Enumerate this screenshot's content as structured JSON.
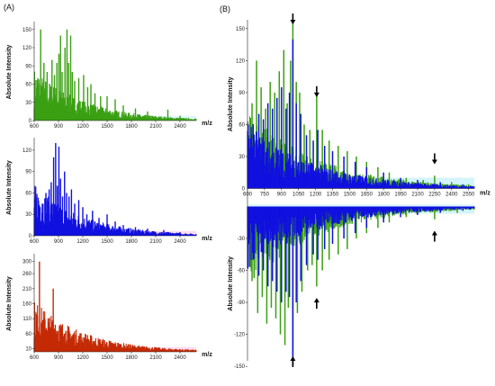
{
  "panels": {
    "a_label": "(A)",
    "b_label": "(B)"
  },
  "colors": {
    "green": "#3aa012",
    "blue": "#1010e0",
    "red": "#c42a05",
    "pink": "#ff9ad0",
    "cyan": "#9ee7f5"
  },
  "chart_data": [
    {
      "type": "bar",
      "title": "",
      "xlabel": "m/z",
      "ylabel": "Absolute Intensity",
      "xlim": [
        600,
        2600
      ],
      "ylim": [
        0,
        160
      ],
      "xticks": [
        600,
        900,
        1200,
        1500,
        1800,
        2100,
        2400
      ],
      "yticks": [
        0,
        30,
        60,
        90,
        120,
        150
      ],
      "series": [
        {
          "color": "#3aa012",
          "peaks": [
            [
              645,
              70
            ],
            [
              680,
              150
            ],
            [
              720,
              95
            ],
            [
              760,
              80
            ],
            [
              790,
              60
            ],
            [
              820,
              100
            ],
            [
              850,
              75
            ],
            [
              880,
              95
            ],
            [
              905,
              110
            ],
            [
              925,
              140
            ],
            [
              945,
              80
            ],
            [
              980,
              120
            ],
            [
              1005,
              150
            ],
            [
              1025,
              95
            ],
            [
              1050,
              140
            ],
            [
              1070,
              80
            ],
            [
              1100,
              65
            ],
            [
              1150,
              70
            ],
            [
              1210,
              75
            ],
            [
              1260,
              55
            ],
            [
              1300,
              60
            ],
            [
              1350,
              45
            ],
            [
              1420,
              40
            ],
            [
              1500,
              40
            ],
            [
              1600,
              35
            ],
            [
              1700,
              25
            ],
            [
              1850,
              20
            ],
            [
              2000,
              15
            ],
            [
              2250,
              18
            ],
            [
              2400,
              8
            ]
          ]
        }
      ]
    },
    {
      "type": "bar",
      "title": "",
      "xlabel": "m/z",
      "ylabel": "Absolute Intensity",
      "xlim": [
        600,
        2600
      ],
      "ylim": [
        0,
        135
      ],
      "xticks": [
        600,
        900,
        1200,
        1500,
        1800,
        2100,
        2400
      ],
      "yticks": [
        0,
        30,
        60,
        90,
        120
      ],
      "series": [
        {
          "color": "#1010e0",
          "peaks": [
            [
              660,
              40
            ],
            [
              700,
              45
            ],
            [
              745,
              60
            ],
            [
              785,
              65
            ],
            [
              810,
              75
            ],
            [
              840,
              110
            ],
            [
              865,
              130
            ],
            [
              885,
              70
            ],
            [
              905,
              125
            ],
            [
              925,
              80
            ],
            [
              950,
              55
            ],
            [
              975,
              90
            ],
            [
              1000,
              60
            ],
            [
              1030,
              55
            ],
            [
              1060,
              65
            ],
            [
              1100,
              45
            ],
            [
              1150,
              50
            ],
            [
              1200,
              40
            ],
            [
              1250,
              30
            ],
            [
              1320,
              35
            ],
            [
              1400,
              25
            ],
            [
              1500,
              30
            ],
            [
              1600,
              20
            ],
            [
              1700,
              15
            ],
            [
              1850,
              12
            ],
            [
              2000,
              10
            ],
            [
              2200,
              8
            ],
            [
              2400,
              5
            ]
          ]
        }
      ]
    },
    {
      "type": "bar",
      "title": "",
      "xlabel": "m/z",
      "ylabel": "Absolute Intensity",
      "xlim": [
        600,
        2600
      ],
      "ylim": [
        0,
        320
      ],
      "xticks": [
        600,
        900,
        1200,
        1500,
        1800,
        2100,
        2400
      ],
      "yticks": [
        10,
        60,
        110,
        160,
        210,
        260,
        300
      ],
      "series": [
        {
          "color": "#c42a05",
          "peaks": [
            [
              640,
              120
            ],
            [
              665,
              300
            ],
            [
              690,
              100
            ],
            [
              720,
              60
            ],
            [
              760,
              70
            ],
            [
              800,
              80
            ],
            [
              835,
              210
            ],
            [
              860,
              90
            ],
            [
              890,
              60
            ],
            [
              930,
              50
            ],
            [
              970,
              60
            ],
            [
              1010,
              40
            ],
            [
              1060,
              35
            ],
            [
              1120,
              40
            ],
            [
              1200,
              25
            ],
            [
              1300,
              20
            ],
            [
              1420,
              15
            ],
            [
              1550,
              15
            ],
            [
              1700,
              10
            ],
            [
              1900,
              8
            ],
            [
              2150,
              6
            ],
            [
              2400,
              5
            ]
          ]
        }
      ]
    },
    {
      "type": "bar",
      "title": "",
      "xlabel": "m/z",
      "ylabel": "Absolute Intensity",
      "xlim": [
        600,
        2600
      ],
      "ylim": [
        -160,
        160
      ],
      "xticks": [
        600,
        750,
        900,
        1050,
        1200,
        1350,
        1500,
        1650,
        1800,
        1950,
        2100,
        2250,
        2400,
        2550
      ],
      "yticks": [
        -150,
        -120,
        -90,
        -60,
        -30,
        0,
        30,
        60,
        90,
        120,
        150
      ],
      "arrows": [
        {
          "x": 1000,
          "direction": "down",
          "side": "top"
        },
        {
          "x": 1210,
          "direction": "down",
          "side": "top"
        },
        {
          "x": 2250,
          "direction": "down",
          "side": "top"
        },
        {
          "x": 1000,
          "direction": "up",
          "side": "bottom"
        },
        {
          "x": 1210,
          "direction": "up",
          "side": "bottom"
        },
        {
          "x": 2250,
          "direction": "up",
          "side": "bottom"
        }
      ],
      "series": [
        {
          "color": "#3aa012",
          "side": "top",
          "peaks": [
            [
              640,
              80
            ],
            [
              680,
              120
            ],
            [
              720,
              95
            ],
            [
              760,
              75
            ],
            [
              800,
              100
            ],
            [
              840,
              90
            ],
            [
              880,
              110
            ],
            [
              920,
              130
            ],
            [
              950,
              80
            ],
            [
              980,
              120
            ],
            [
              1000,
              158
            ],
            [
              1030,
              100
            ],
            [
              1060,
              90
            ],
            [
              1100,
              60
            ],
            [
              1150,
              55
            ],
            [
              1210,
              90
            ],
            [
              1260,
              55
            ],
            [
              1320,
              45
            ],
            [
              1400,
              40
            ],
            [
              1480,
              35
            ],
            [
              1560,
              30
            ],
            [
              1650,
              25
            ],
            [
              1750,
              20
            ],
            [
              1850,
              15
            ],
            [
              2000,
              10
            ],
            [
              2150,
              8
            ],
            [
              2250,
              12
            ],
            [
              2400,
              6
            ],
            [
              2550,
              4
            ]
          ]
        },
        {
          "color": "#1010e0",
          "side": "top",
          "peaks": [
            [
              650,
              60
            ],
            [
              700,
              70
            ],
            [
              740,
              65
            ],
            [
              780,
              80
            ],
            [
              820,
              75
            ],
            [
              860,
              85
            ],
            [
              900,
              95
            ],
            [
              940,
              75
            ],
            [
              970,
              90
            ],
            [
              1000,
              140
            ],
            [
              1030,
              80
            ],
            [
              1070,
              70
            ],
            [
              1120,
              50
            ],
            [
              1180,
              45
            ],
            [
              1220,
              55
            ],
            [
              1280,
              40
            ],
            [
              1350,
              35
            ],
            [
              1450,
              30
            ],
            [
              1550,
              25
            ],
            [
              1650,
              20
            ],
            [
              1800,
              15
            ],
            [
              1950,
              10
            ],
            [
              2100,
              8
            ],
            [
              2300,
              6
            ],
            [
              2500,
              4
            ]
          ]
        },
        {
          "color": "#3aa012",
          "side": "bottom",
          "peaks": [
            [
              640,
              -70
            ],
            [
              690,
              -100
            ],
            [
              730,
              -85
            ],
            [
              770,
              -110
            ],
            [
              810,
              -95
            ],
            [
              850,
              -105
            ],
            [
              890,
              -120
            ],
            [
              930,
              -130
            ],
            [
              960,
              -95
            ],
            [
              1000,
              -140
            ],
            [
              1040,
              -100
            ],
            [
              1080,
              -80
            ],
            [
              1130,
              -60
            ],
            [
              1170,
              -55
            ],
            [
              1210,
              -75
            ],
            [
              1260,
              -60
            ],
            [
              1320,
              -50
            ],
            [
              1400,
              -45
            ],
            [
              1480,
              -40
            ],
            [
              1560,
              -30
            ],
            [
              1650,
              -25
            ],
            [
              1750,
              -20
            ],
            [
              1850,
              -15
            ],
            [
              2000,
              -10
            ],
            [
              2250,
              -12
            ],
            [
              2450,
              -6
            ]
          ]
        },
        {
          "color": "#1010e0",
          "side": "bottom",
          "peaks": [
            [
              650,
              -50
            ],
            [
              700,
              -65
            ],
            [
              740,
              -60
            ],
            [
              780,
              -75
            ],
            [
              820,
              -70
            ],
            [
              860,
              -80
            ],
            [
              900,
              -90
            ],
            [
              940,
              -80
            ],
            [
              970,
              -85
            ],
            [
              1000,
              -150
            ],
            [
              1030,
              -90
            ],
            [
              1070,
              -70
            ],
            [
              1120,
              -55
            ],
            [
              1180,
              -45
            ],
            [
              1220,
              -50
            ],
            [
              1280,
              -40
            ],
            [
              1350,
              -35
            ],
            [
              1450,
              -30
            ],
            [
              1550,
              -25
            ],
            [
              1650,
              -20
            ],
            [
              1800,
              -15
            ],
            [
              1950,
              -10
            ],
            [
              2100,
              -8
            ],
            [
              2300,
              -6
            ],
            [
              2500,
              -4
            ]
          ]
        }
      ]
    }
  ]
}
